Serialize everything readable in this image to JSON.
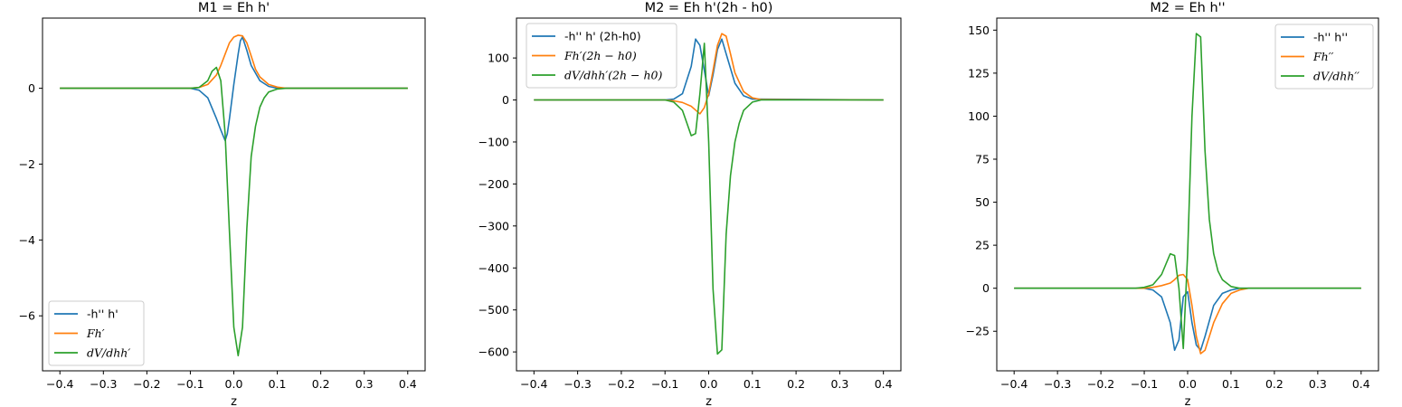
{
  "chart_data": [
    {
      "type": "line",
      "title": "M1 = Eh h'",
      "xlabel": "z",
      "ylabel": "",
      "xlim": [
        -0.44,
        0.44
      ],
      "ylim": [
        -7.45,
        1.85
      ],
      "xticks": [
        -0.4,
        -0.3,
        -0.2,
        -0.1,
        0.0,
        0.1,
        0.2,
        0.3,
        0.4
      ],
      "xtick_labels": [
        "−0.4",
        "−0.3",
        "−0.2",
        "−0.1",
        "0.0",
        "0.1",
        "0.2",
        "0.3",
        "0.4"
      ],
      "yticks": [
        -6,
        -4,
        -2,
        0
      ],
      "ytick_labels": [
        "−6",
        "−4",
        "−2",
        "0"
      ],
      "legend": {
        "position": "lower-left"
      },
      "series": [
        {
          "name": "-h'' h'",
          "italic": false,
          "color": "#1f77b4",
          "x": [
            -0.4,
            -0.1,
            -0.08,
            -0.06,
            -0.04,
            -0.03,
            -0.02,
            -0.015,
            -0.01,
            0.0,
            0.01,
            0.015,
            0.02,
            0.03,
            0.04,
            0.06,
            0.08,
            0.1,
            0.4
          ],
          "y": [
            0,
            0,
            -0.05,
            -0.25,
            -0.8,
            -1.1,
            -1.38,
            -1.2,
            -0.8,
            0.1,
            0.9,
            1.25,
            1.35,
            1.0,
            0.6,
            0.2,
            0.05,
            0,
            0
          ]
        },
        {
          "name": "Fh′",
          "italic": true,
          "color": "#ff7f0e",
          "x": [
            -0.4,
            -0.1,
            -0.08,
            -0.06,
            -0.04,
            -0.03,
            -0.02,
            -0.01,
            0.0,
            0.01,
            0.02,
            0.03,
            0.04,
            0.05,
            0.06,
            0.08,
            0.1,
            0.12,
            0.4
          ],
          "y": [
            0,
            0,
            0.02,
            0.1,
            0.35,
            0.6,
            0.9,
            1.2,
            1.35,
            1.4,
            1.38,
            1.2,
            0.85,
            0.5,
            0.3,
            0.1,
            0.03,
            0,
            0
          ]
        },
        {
          "name": "dV/dhh′",
          "italic": true,
          "color": "#2ca02c",
          "x": [
            -0.4,
            -0.1,
            -0.08,
            -0.06,
            -0.05,
            -0.04,
            -0.03,
            -0.02,
            -0.01,
            0.0,
            0.01,
            0.02,
            0.03,
            0.04,
            0.05,
            0.06,
            0.07,
            0.08,
            0.1,
            0.12,
            0.4
          ],
          "y": [
            0,
            0,
            0.02,
            0.2,
            0.45,
            0.55,
            0.2,
            -1.2,
            -3.8,
            -6.3,
            -7.05,
            -6.3,
            -3.7,
            -1.8,
            -1.0,
            -0.5,
            -0.25,
            -0.1,
            -0.02,
            0,
            0
          ]
        }
      ]
    },
    {
      "type": "line",
      "title": "M2 = Eh h'(2h - h0)",
      "xlabel": "z",
      "ylabel": "",
      "xlim": [
        -0.44,
        0.44
      ],
      "ylim": [
        -645,
        195
      ],
      "xticks": [
        -0.4,
        -0.3,
        -0.2,
        -0.1,
        0.0,
        0.1,
        0.2,
        0.3,
        0.4
      ],
      "xtick_labels": [
        "−0.4",
        "−0.3",
        "−0.2",
        "−0.1",
        "0.0",
        "0.1",
        "0.2",
        "0.3",
        "0.4"
      ],
      "yticks": [
        -600,
        -500,
        -400,
        -300,
        -200,
        -100,
        0,
        100
      ],
      "ytick_labels": [
        "−600",
        "−500",
        "−400",
        "−300",
        "−200",
        "−100",
        "0",
        "100"
      ],
      "legend": {
        "position": "upper-left"
      },
      "series": [
        {
          "name": "-h'' h' (2h-h0)",
          "italic": false,
          "color": "#1f77b4",
          "x": [
            -0.4,
            -0.1,
            -0.08,
            -0.06,
            -0.04,
            -0.03,
            -0.02,
            -0.01,
            0.0,
            0.01,
            0.02,
            0.03,
            0.04,
            0.06,
            0.08,
            0.1,
            0.4
          ],
          "y": [
            0,
            0,
            2,
            15,
            80,
            145,
            130,
            70,
            10,
            60,
            120,
            145,
            110,
            40,
            10,
            2,
            0
          ]
        },
        {
          "name": "Fh′(2h − h0)",
          "italic": true,
          "color": "#ff7f0e",
          "x": [
            -0.4,
            -0.1,
            -0.08,
            -0.06,
            -0.04,
            -0.03,
            -0.02,
            -0.01,
            0.0,
            0.01,
            0.02,
            0.03,
            0.04,
            0.05,
            0.06,
            0.08,
            0.1,
            0.12,
            0.4
          ],
          "y": [
            0,
            0,
            -2,
            -6,
            -15,
            -24,
            -33,
            -18,
            15,
            70,
            130,
            158,
            152,
            110,
            65,
            20,
            5,
            1,
            0
          ]
        },
        {
          "name": "dV/dhh′(2h − h0)",
          "italic": true,
          "color": "#2ca02c",
          "x": [
            -0.4,
            -0.1,
            -0.08,
            -0.06,
            -0.05,
            -0.04,
            -0.03,
            -0.02,
            -0.01,
            0.0,
            0.01,
            0.02,
            0.03,
            0.04,
            0.05,
            0.06,
            0.07,
            0.08,
            0.1,
            0.12,
            0.4
          ],
          "y": [
            0,
            0,
            -5,
            -25,
            -55,
            -85,
            -80,
            15,
            135,
            -100,
            -450,
            -605,
            -595,
            -320,
            -180,
            -100,
            -55,
            -25,
            -5,
            0,
            0
          ]
        }
      ]
    },
    {
      "type": "line",
      "title": "M2 = Eh h''",
      "xlabel": "z",
      "ylabel": "",
      "xlim": [
        -0.44,
        0.44
      ],
      "ylim": [
        -48,
        157
      ],
      "xticks": [
        -0.4,
        -0.3,
        -0.2,
        -0.1,
        0.0,
        0.1,
        0.2,
        0.3,
        0.4
      ],
      "xtick_labels": [
        "−0.4",
        "−0.3",
        "−0.2",
        "−0.1",
        "0.0",
        "0.1",
        "0.2",
        "0.3",
        "0.4"
      ],
      "yticks": [
        -25,
        0,
        25,
        50,
        75,
        100,
        125,
        150
      ],
      "ytick_labels": [
        "−25",
        "0",
        "25",
        "50",
        "75",
        "100",
        "125",
        "150"
      ],
      "legend": {
        "position": "upper-right"
      },
      "series": [
        {
          "name": "-h'' h''",
          "italic": false,
          "color": "#1f77b4",
          "x": [
            -0.4,
            -0.1,
            -0.08,
            -0.06,
            -0.04,
            -0.03,
            -0.02,
            -0.01,
            0.0,
            0.01,
            0.02,
            0.03,
            0.04,
            0.06,
            0.08,
            0.1,
            0.12,
            0.4
          ],
          "y": [
            0,
            0,
            -1,
            -5,
            -20,
            -36,
            -30,
            -5,
            -2,
            -20,
            -33,
            -36,
            -28,
            -10,
            -3,
            -1,
            0,
            0
          ]
        },
        {
          "name": "Fh′′",
          "italic": true,
          "color": "#ff7f0e",
          "x": [
            -0.4,
            -0.1,
            -0.08,
            -0.06,
            -0.04,
            -0.03,
            -0.02,
            -0.01,
            0.0,
            0.01,
            0.02,
            0.03,
            0.04,
            0.05,
            0.06,
            0.08,
            0.1,
            0.12,
            0.14,
            0.4
          ],
          "y": [
            0,
            0,
            0.5,
            1.5,
            3,
            5,
            7.5,
            8,
            5,
            -10,
            -28,
            -38,
            -36,
            -28,
            -20,
            -9,
            -3,
            -1,
            0,
            0
          ]
        },
        {
          "name": "dV/dhh′′",
          "italic": true,
          "color": "#2ca02c",
          "x": [
            -0.4,
            -0.12,
            -0.1,
            -0.08,
            -0.06,
            -0.05,
            -0.04,
            -0.03,
            -0.02,
            -0.01,
            0.0,
            0.01,
            0.02,
            0.03,
            0.04,
            0.05,
            0.06,
            0.07,
            0.08,
            0.1,
            0.12,
            0.4
          ],
          "y": [
            0,
            0,
            0.5,
            2,
            8,
            14,
            20,
            19,
            0,
            -35,
            20,
            100,
            148,
            146,
            80,
            40,
            20,
            10,
            5,
            1,
            0,
            0
          ]
        }
      ]
    }
  ]
}
